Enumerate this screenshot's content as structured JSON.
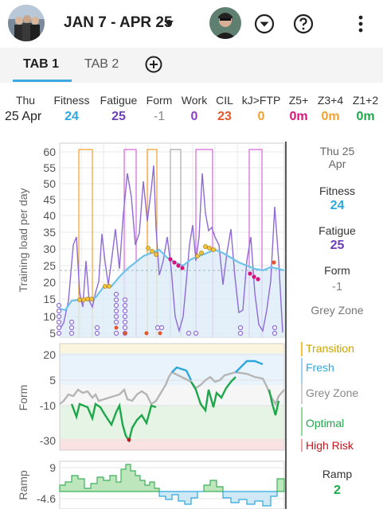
{
  "header": {
    "date_range": "JAN 7 - APR 25",
    "icons": [
      "team-avatar",
      "user-avatar",
      "dropdown-circle-icon",
      "help-icon",
      "more-vert-icon"
    ]
  },
  "tabs": [
    {
      "label": "TAB 1",
      "active": true
    },
    {
      "label": "TAB 2",
      "active": false
    }
  ],
  "summary": {
    "day": "Thu",
    "date": "25 Apr",
    "columns": [
      {
        "label": "Fitness",
        "value": "24",
        "color": "#2ea8dc"
      },
      {
        "label": "Fatigue",
        "value": "25",
        "color": "#6b3fb5"
      },
      {
        "label": "Form",
        "value": "-1",
        "color": "#888888"
      },
      {
        "label": "Work",
        "value": "0",
        "color": "#8a3ec8"
      },
      {
        "label": "CIL",
        "value": "23",
        "color": "#e4572e"
      },
      {
        "label": "kJ>FTP",
        "value": "0",
        "color": "#f2a12f"
      },
      {
        "label": "Z5+",
        "value": "0m",
        "color": "#d8137c"
      },
      {
        "label": "Z3+4",
        "value": "0m",
        "color": "#f2a12f"
      },
      {
        "label": "Z1+2",
        "value": "0m",
        "color": "#1ea64a"
      }
    ]
  },
  "training_chart": {
    "ylabel": "Training load per day",
    "yticks": [
      "60",
      "55",
      "50",
      "45",
      "40",
      "35",
      "30",
      "25",
      "20",
      "15",
      "10",
      "5"
    ]
  },
  "form_chart": {
    "ylabel": "Form",
    "yticks": [
      "20",
      "5",
      "-10",
      "-30"
    ]
  },
  "ramp_chart": {
    "ylabel": "Ramp",
    "yticks": [
      "9",
      "-4.6"
    ]
  },
  "side": {
    "date_line1": "Thu 25",
    "date_line2": "Apr",
    "fitness_label": "Fitness",
    "fitness_value": "24",
    "fatigue_label": "Fatigue",
    "fatigue_value": "25",
    "form_label": "Form",
    "form_value": "-1",
    "zone": "Grey Zone",
    "legend": [
      {
        "label": "Transition",
        "color": "#d4b200"
      },
      {
        "label": "Fresh",
        "color": "#2ea8dc"
      },
      {
        "label": "Grey Zone",
        "color": "#888888"
      },
      {
        "label": "Optimal",
        "color": "#1ea64a"
      },
      {
        "label": "High Risk",
        "color": "#c0161e"
      }
    ],
    "ramp_label": "Ramp",
    "ramp_value": "2"
  },
  "colors": {
    "fitness": "#6ec3ea",
    "fatigue": "#8e6ad6",
    "accent": "#3da9e0"
  }
}
